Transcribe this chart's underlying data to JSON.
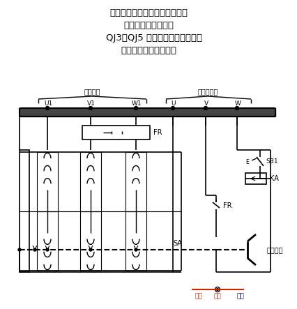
{
  "bg_color": "#ffffff",
  "black": "#000000",
  "red": "#cc2200",
  "blue": "#000066",
  "title_lines": [
    "自耦变压器减压起动，有手动控",
    "制和自动控制两种。",
    "    QJ3、QJ5 为手动起动补偿器，其",
    "结构和控制电路，见图"
  ],
  "lbl_motor": "接电动机",
  "lbl_power": "接三相电源",
  "lbl_U1": "U1",
  "lbl_V1": "V1",
  "lbl_W1": "W1",
  "lbl_U": "U",
  "lbl_V": "V",
  "lbl_W": "W",
  "lbl_FR": "FR",
  "lbl_FR2": "FR",
  "lbl_SB1": "SB1",
  "lbl_KA": "KA",
  "lbl_SA": "SA",
  "lbl_handle": "操作手柄",
  "lbl_run": "运行",
  "lbl_stop": "停止",
  "lbl_start": "起动"
}
